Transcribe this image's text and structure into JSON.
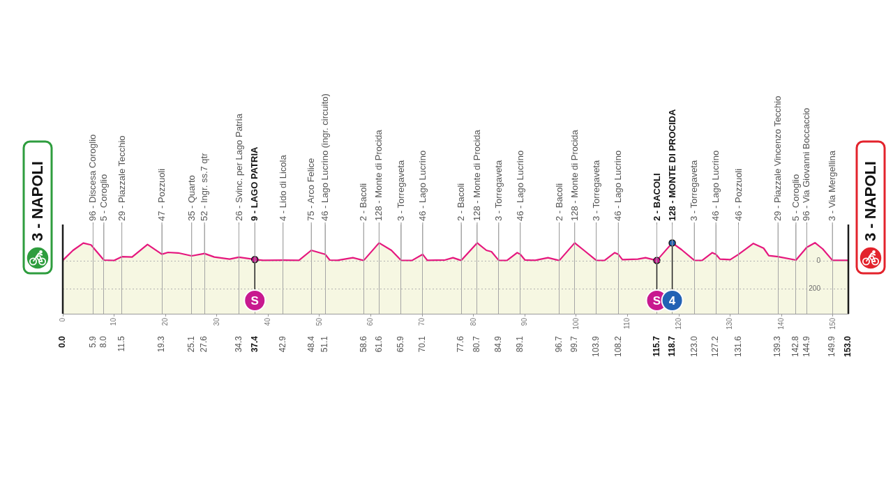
{
  "chart_data": {
    "type": "area",
    "series": [
      {
        "color": "#f6f7e2",
        "x": [
          0,
          2,
          4,
          5.5,
          5.9,
          8.0,
          10,
          11.5,
          13.5,
          16.5,
          19.3,
          20.5,
          22.5,
          25.1,
          27.6,
          29.5,
          32.5,
          34.3,
          37.4,
          39,
          42.9,
          46,
          48.4,
          51.1,
          52,
          53.5,
          56.5,
          58.6,
          61.6,
          64,
          65.9,
          68,
          70.1,
          71,
          74.5,
          76,
          77.6,
          80.7,
          82.5,
          83.5,
          84.9,
          86.5,
          88.5,
          89.1,
          90,
          92,
          94.5,
          96.7,
          99.7,
          101.5,
          103.9,
          105.5,
          107.5,
          108.2,
          109,
          112,
          113.5,
          115.7,
          118.7,
          120.5,
          123.0,
          124.5,
          126.5,
          127.2,
          128,
          130,
          131.6,
          134.5,
          136.5,
          137.5,
          139.3,
          142.8,
          144.9,
          146.5,
          148,
          149.9,
          153.0
        ],
        "values": [
          3,
          75,
          127,
          114,
          96,
          5,
          2,
          29,
          27,
          117,
          47,
          60,
          56,
          35,
          52,
          27,
          12,
          26,
          9,
          3,
          4,
          3,
          75,
          46,
          5,
          3,
          22,
          2,
          128,
          75,
          3,
          2,
          46,
          3,
          6,
          22,
          2,
          128,
          75,
          65,
          3,
          2,
          58,
          46,
          6,
          3,
          22,
          2,
          128,
          75,
          3,
          2,
          58,
          46,
          8,
          12,
          22,
          2,
          128,
          80,
          3,
          2,
          58,
          46,
          12,
          8,
          46,
          124,
          90,
          37,
          29,
          5,
          96,
          129,
          85,
          3,
          3
        ]
      },
      {
        "type": "scatter",
        "x": [
          37.4,
          115.7,
          118.7
        ],
        "values": [
          9,
          2,
          128
        ],
        "colors": [
          "#c8198f",
          "#c8198f",
          "#2262b4"
        ]
      }
    ],
    "annotations": [
      {
        "text": "96 - Discesa Coroglio",
        "x": 5.9,
        "y": 96
      },
      {
        "text": "5 - Coroglio",
        "x": 8.0,
        "y": 5
      },
      {
        "text": "29 - Piazzale Tecchio",
        "x": 11.5,
        "y": 29
      },
      {
        "text": "47 - Pozzuoli",
        "x": 19.3,
        "y": 47
      },
      {
        "text": "35 - Quarto",
        "x": 25.1,
        "y": 35
      },
      {
        "text": "52 - Ingr. ss.7 qtr",
        "x": 27.6,
        "y": 52
      },
      {
        "text": "26 - Svinc. per Lago Patria",
        "x": 34.3,
        "y": 26
      },
      {
        "text": "9 - LAGO PATRIA",
        "x": 37.4,
        "y": 9
      },
      {
        "text": "4 - Lido di Licola",
        "x": 42.9,
        "y": 4
      },
      {
        "text": "75 - Arco Felice",
        "x": 48.4,
        "y": 75
      },
      {
        "text": "46 - Lago Lucrino (ingr. circuito)",
        "x": 51.1,
        "y": 46
      },
      {
        "text": "2 - Bacoli",
        "x": 58.6,
        "y": 2
      },
      {
        "text": "128 - Monte di Procida",
        "x": 61.6,
        "y": 128
      },
      {
        "text": "3 - Torregaveta",
        "x": 65.9,
        "y": 3
      },
      {
        "text": "46 - Lago Lucrino",
        "x": 70.1,
        "y": 46
      },
      {
        "text": "2 - Bacoli",
        "x": 77.6,
        "y": 2
      },
      {
        "text": "128 - Monte di Procida",
        "x": 80.7,
        "y": 128
      },
      {
        "text": "3 - Torregaveta",
        "x": 84.9,
        "y": 3
      },
      {
        "text": "46 - Lago Lucrino",
        "x": 89.1,
        "y": 46
      },
      {
        "text": "2 - Bacoli",
        "x": 96.7,
        "y": 2
      },
      {
        "text": "128 - Monte di Procida",
        "x": 99.7,
        "y": 128
      },
      {
        "text": "3 - Torregaveta",
        "x": 103.9,
        "y": 3
      },
      {
        "text": "46 - Lago Lucrino",
        "x": 108.2,
        "y": 46
      },
      {
        "text": "2 - BACOLI",
        "x": 115.7,
        "y": 2
      },
      {
        "text": "128 - MONTE DI PROCIDA",
        "x": 118.7,
        "y": 128
      },
      {
        "text": "3 - Torregaveta",
        "x": 123.0,
        "y": 3
      },
      {
        "text": "46 - Lago Lucrino",
        "x": 127.2,
        "y": 46
      },
      {
        "text": "46 - Pozzuoli",
        "x": 131.6,
        "y": 46
      },
      {
        "text": "29 - Piazzale Vincenzo Tecchio",
        "x": 139.3,
        "y": 29
      },
      {
        "text": "5 - Coroglio",
        "x": 142.8,
        "y": 5
      },
      {
        "text": "96 - Via Giovanni Boccaccio",
        "x": 144.9,
        "y": 96
      },
      {
        "text": "3 - Via Mergellina",
        "x": 149.9,
        "y": 3
      },
      {
        "text": "S",
        "x": 37.4
      },
      {
        "text": "S",
        "x": 115.7
      },
      {
        "text": "4",
        "x": 118.7
      }
    ],
    "ref_lines": [
      {
        "axis": "x",
        "value": 0,
        "label": "3 - NAPOLI",
        "color": "#1a1a1a"
      },
      {
        "axis": "x",
        "value": 153,
        "label": "3 - NAPOLI",
        "color": "#1a1a1a"
      }
    ],
    "bands": [
      {
        "axis": "y",
        "from": -380,
        "to": 0,
        "color": "#f6f7e2"
      }
    ],
    "xlim": [
      0,
      153
    ],
    "xticks": [
      0,
      10,
      20,
      30,
      40,
      50,
      60,
      70,
      80,
      90,
      100,
      110,
      120,
      130,
      140,
      150
    ],
    "x2lim": [
      0,
      153
    ],
    "x2ticks": [
      {
        "value": 0,
        "label": "0.0"
      },
      5.9,
      {
        "value": 8,
        "label": "8.0"
      },
      11.5,
      19.3,
      25.1,
      27.6,
      34.3,
      37.4,
      42.9,
      48.4,
      51.1,
      58.6,
      61.6,
      65.9,
      70.1,
      77.6,
      80.7,
      84.9,
      89.1,
      96.7,
      99.7,
      103.9,
      108.2,
      115.7,
      118.7,
      {
        "value": 123,
        "label": "123.0"
      },
      127.2,
      131.6,
      139.3,
      142.8,
      144.9,
      149.9,
      {
        "value": 153,
        "label": "153.0"
      }
    ],
    "ylim": [
      -380,
      260
    ],
    "yticks": [
      0,
      {
        "value": -200,
        "label": "200"
      }
    ],
    "grid": true,
    "legend": false
  }
}
